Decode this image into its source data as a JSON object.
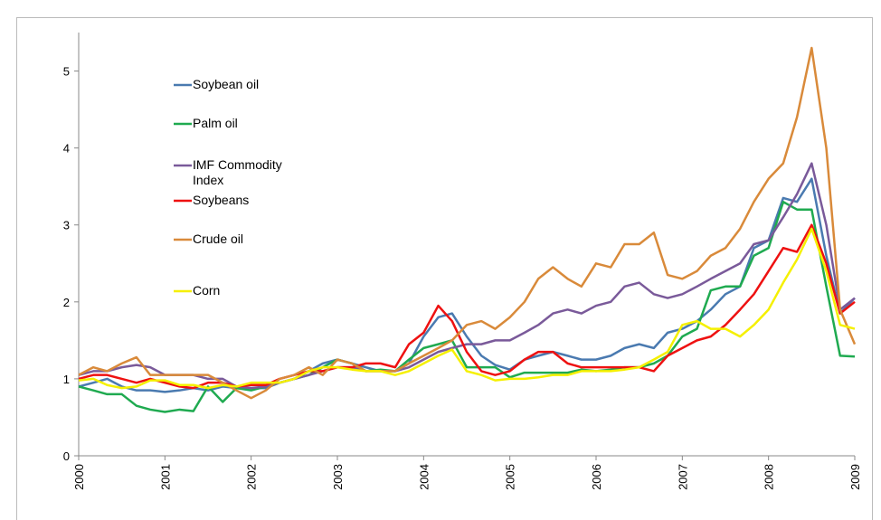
{
  "chart_data": {
    "type": "line",
    "x": [
      2000,
      2000.17,
      2000.33,
      2000.5,
      2000.67,
      2000.83,
      2001,
      2001.17,
      2001.33,
      2001.5,
      2001.67,
      2001.83,
      2002,
      2002.17,
      2002.33,
      2002.5,
      2002.67,
      2002.83,
      2003,
      2003.17,
      2003.33,
      2003.5,
      2003.67,
      2003.83,
      2004,
      2004.17,
      2004.33,
      2004.5,
      2004.67,
      2004.83,
      2005,
      2005.17,
      2005.33,
      2005.5,
      2005.67,
      2005.83,
      2006,
      2006.17,
      2006.33,
      2006.5,
      2006.67,
      2006.83,
      2007,
      2007.17,
      2007.33,
      2007.5,
      2007.67,
      2007.83,
      2008,
      2008.17,
      2008.33,
      2008.5,
      2008.67,
      2008.83,
      2009
    ],
    "series": [
      {
        "name": "Soybean oil",
        "color": "#4a7ab0",
        "values": [
          0.9,
          0.95,
          1.0,
          0.9,
          0.85,
          0.85,
          0.83,
          0.85,
          0.88,
          0.85,
          0.9,
          0.88,
          0.88,
          0.88,
          0.95,
          1.0,
          1.1,
          1.2,
          1.25,
          1.2,
          1.15,
          1.1,
          1.1,
          1.2,
          1.55,
          1.8,
          1.85,
          1.55,
          1.3,
          1.18,
          1.12,
          1.25,
          1.3,
          1.35,
          1.3,
          1.25,
          1.25,
          1.3,
          1.4,
          1.45,
          1.4,
          1.6,
          1.65,
          1.75,
          1.9,
          2.1,
          2.2,
          2.7,
          2.8,
          3.35,
          3.3,
          3.6,
          2.6,
          1.85,
          2.05
        ]
      },
      {
        "name": "Palm oil",
        "color": "#1faa50",
        "values": [
          0.9,
          0.85,
          0.8,
          0.8,
          0.65,
          0.6,
          0.57,
          0.6,
          0.58,
          0.9,
          0.7,
          0.88,
          0.85,
          0.9,
          0.95,
          1.0,
          1.05,
          1.15,
          1.25,
          1.2,
          1.1,
          1.12,
          1.1,
          1.25,
          1.4,
          1.45,
          1.5,
          1.15,
          1.15,
          1.15,
          1.02,
          1.08,
          1.08,
          1.08,
          1.08,
          1.12,
          1.1,
          1.12,
          1.15,
          1.15,
          1.2,
          1.3,
          1.55,
          1.65,
          2.15,
          2.2,
          2.2,
          2.6,
          2.7,
          3.3,
          3.2,
          3.2,
          2.2,
          1.3,
          1.29
        ]
      },
      {
        "name": "IMF Commodity Index",
        "color": "#7a5a9a",
        "values": [
          1.05,
          1.1,
          1.1,
          1.15,
          1.18,
          1.15,
          1.05,
          1.05,
          1.05,
          1.0,
          1.0,
          0.9,
          0.88,
          0.9,
          0.95,
          1.0,
          1.05,
          1.1,
          1.15,
          1.15,
          1.1,
          1.1,
          1.1,
          1.15,
          1.25,
          1.35,
          1.4,
          1.45,
          1.45,
          1.5,
          1.5,
          1.6,
          1.7,
          1.85,
          1.9,
          1.85,
          1.95,
          2.0,
          2.2,
          2.25,
          2.1,
          2.05,
          2.1,
          2.2,
          2.3,
          2.4,
          2.5,
          2.75,
          2.8,
          3.1,
          3.4,
          3.8,
          3.0,
          1.9,
          2.05
        ]
      },
      {
        "name": "Soybeans",
        "color": "#ee1111",
        "values": [
          1.0,
          1.05,
          1.05,
          1.0,
          0.95,
          1.0,
          0.95,
          0.9,
          0.88,
          0.95,
          0.95,
          0.9,
          0.92,
          0.92,
          1.0,
          1.05,
          1.1,
          1.1,
          1.15,
          1.15,
          1.2,
          1.2,
          1.15,
          1.45,
          1.6,
          1.95,
          1.75,
          1.35,
          1.1,
          1.05,
          1.1,
          1.25,
          1.35,
          1.35,
          1.2,
          1.15,
          1.15,
          1.15,
          1.15,
          1.15,
          1.1,
          1.3,
          1.4,
          1.5,
          1.55,
          1.7,
          1.9,
          2.1,
          2.4,
          2.7,
          2.65,
          3.0,
          2.5,
          1.85,
          2.0
        ]
      },
      {
        "name": "Crude oil",
        "color": "#d98a3a",
        "values": [
          1.05,
          1.15,
          1.1,
          1.2,
          1.28,
          1.05,
          1.05,
          1.05,
          1.05,
          1.05,
          0.95,
          0.85,
          0.75,
          0.85,
          1.0,
          1.05,
          1.15,
          1.05,
          1.25,
          1.2,
          1.1,
          1.1,
          1.1,
          1.2,
          1.3,
          1.4,
          1.5,
          1.7,
          1.75,
          1.65,
          1.8,
          2.0,
          2.3,
          2.45,
          2.3,
          2.2,
          2.5,
          2.45,
          2.75,
          2.75,
          2.9,
          2.35,
          2.3,
          2.4,
          2.6,
          2.7,
          2.95,
          3.3,
          3.6,
          3.8,
          4.4,
          5.3,
          4.0,
          1.9,
          1.45
        ]
      },
      {
        "name": "Corn",
        "color": "#f5f000",
        "values": [
          0.98,
          1.0,
          0.92,
          0.88,
          0.9,
          0.98,
          0.98,
          0.92,
          0.92,
          0.88,
          0.92,
          0.9,
          0.95,
          0.95,
          0.95,
          1.0,
          1.1,
          1.15,
          1.15,
          1.12,
          1.1,
          1.1,
          1.05,
          1.1,
          1.2,
          1.3,
          1.38,
          1.1,
          1.05,
          0.98,
          1.0,
          1.0,
          1.02,
          1.05,
          1.05,
          1.1,
          1.1,
          1.1,
          1.12,
          1.15,
          1.25,
          1.35,
          1.7,
          1.75,
          1.65,
          1.65,
          1.55,
          1.7,
          1.9,
          2.25,
          2.55,
          2.95,
          2.4,
          1.7,
          1.65
        ]
      }
    ],
    "xlim": [
      2000,
      2009
    ],
    "xticks": [
      2000,
      2001,
      2002,
      2003,
      2004,
      2005,
      2006,
      2007,
      2008,
      2009
    ],
    "ylim": [
      0,
      5.5
    ],
    "yticks": [
      0,
      1,
      2,
      3,
      4,
      5
    ],
    "grid": false
  }
}
